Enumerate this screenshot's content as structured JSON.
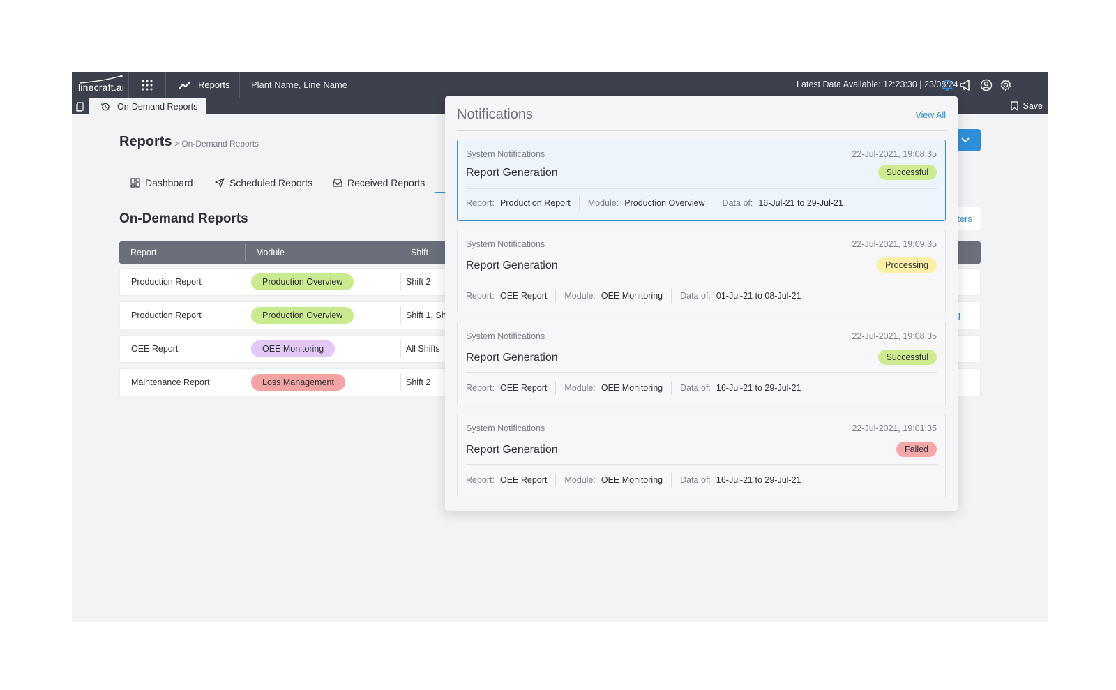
{
  "topbar": {
    "logo_text": "linecraft.ai",
    "nav_label": "Reports",
    "plant": "Plant Name, Line Name",
    "latest_data": "Latest Data Available: 12:23:30 | 23/08/24"
  },
  "tabstrip": {
    "active_tab": "On-Demand Reports",
    "save_label": "Save"
  },
  "page": {
    "title": "Reports",
    "breadcrumb": "> On-Demand Reports",
    "tabs": [
      {
        "label": "Dashboard",
        "icon": "dashboard-icon"
      },
      {
        "label": "Scheduled Reports",
        "icon": "send-icon"
      },
      {
        "label": "Received Reports",
        "icon": "inbox-icon"
      }
    ],
    "section_title": "On-Demand Reports",
    "filters_partial": "ters",
    "table": {
      "columns": [
        "Report",
        "Module",
        "Shift"
      ],
      "rows": [
        {
          "report": "Production Report",
          "module": "Production Overview",
          "module_color": "#c9ea8e",
          "shift": "Shift 2",
          "trailing": ""
        },
        {
          "report": "Production Report",
          "module": "Production Overview",
          "module_color": "#c9ea8e",
          "shift": "Shift 1, Shi",
          "trailing": "g"
        },
        {
          "report": "OEE Report",
          "module": "OEE Monitoring",
          "module_color": "#e3c8f5",
          "shift": "All Shifts",
          "trailing": ""
        },
        {
          "report": "Maintenance Report",
          "module": "Loss Management",
          "module_color": "#f3a3a3",
          "shift": "Shift 2",
          "trailing": ""
        }
      ]
    }
  },
  "notifications": {
    "title": "Notifications",
    "view_all": "View All",
    "items": [
      {
        "source": "System Notifications",
        "time": "22-Jul-2021, 19:08:35",
        "heading": "Report Generation",
        "status": "Successful",
        "status_color": "#cdec8f",
        "report": "Production Report",
        "module": "Production Overview",
        "data_of": "16-Jul-21 to 29-Jul-21"
      },
      {
        "source": "System Notifications",
        "time": "22-Jul-2021, 19:09:35",
        "heading": "Report Generation",
        "status": "Processing",
        "status_color": "#fbf0a6",
        "report": "OEE Report",
        "module": "OEE Monitoring",
        "data_of": "01-Jul-21 to 08-Jul-21"
      },
      {
        "source": "System Notifications",
        "time": "22-Jul-2021, 19:08:35",
        "heading": "Report Generation",
        "status": "Successful",
        "status_color": "#cdec8f",
        "report": "OEE Report",
        "module": "OEE Monitoring",
        "data_of": "16-Jul-21 to 29-Jul-21"
      },
      {
        "source": "System Notifications",
        "time": "22-Jul-2021, 19:01:35",
        "heading": "Report Generation",
        "status": "Failed",
        "status_color": "#f6a8a8",
        "report": "OEE Report",
        "module": "OEE Monitoring",
        "data_of": "16-Jul-21 to 29-Jul-21"
      }
    ],
    "labels": {
      "report": "Report:",
      "module": "Module:",
      "data_of": "Data of:"
    }
  },
  "colors": {
    "topbar": "#3d414d",
    "accent": "#2d8fd8",
    "table_header": "#6b6f7c"
  }
}
